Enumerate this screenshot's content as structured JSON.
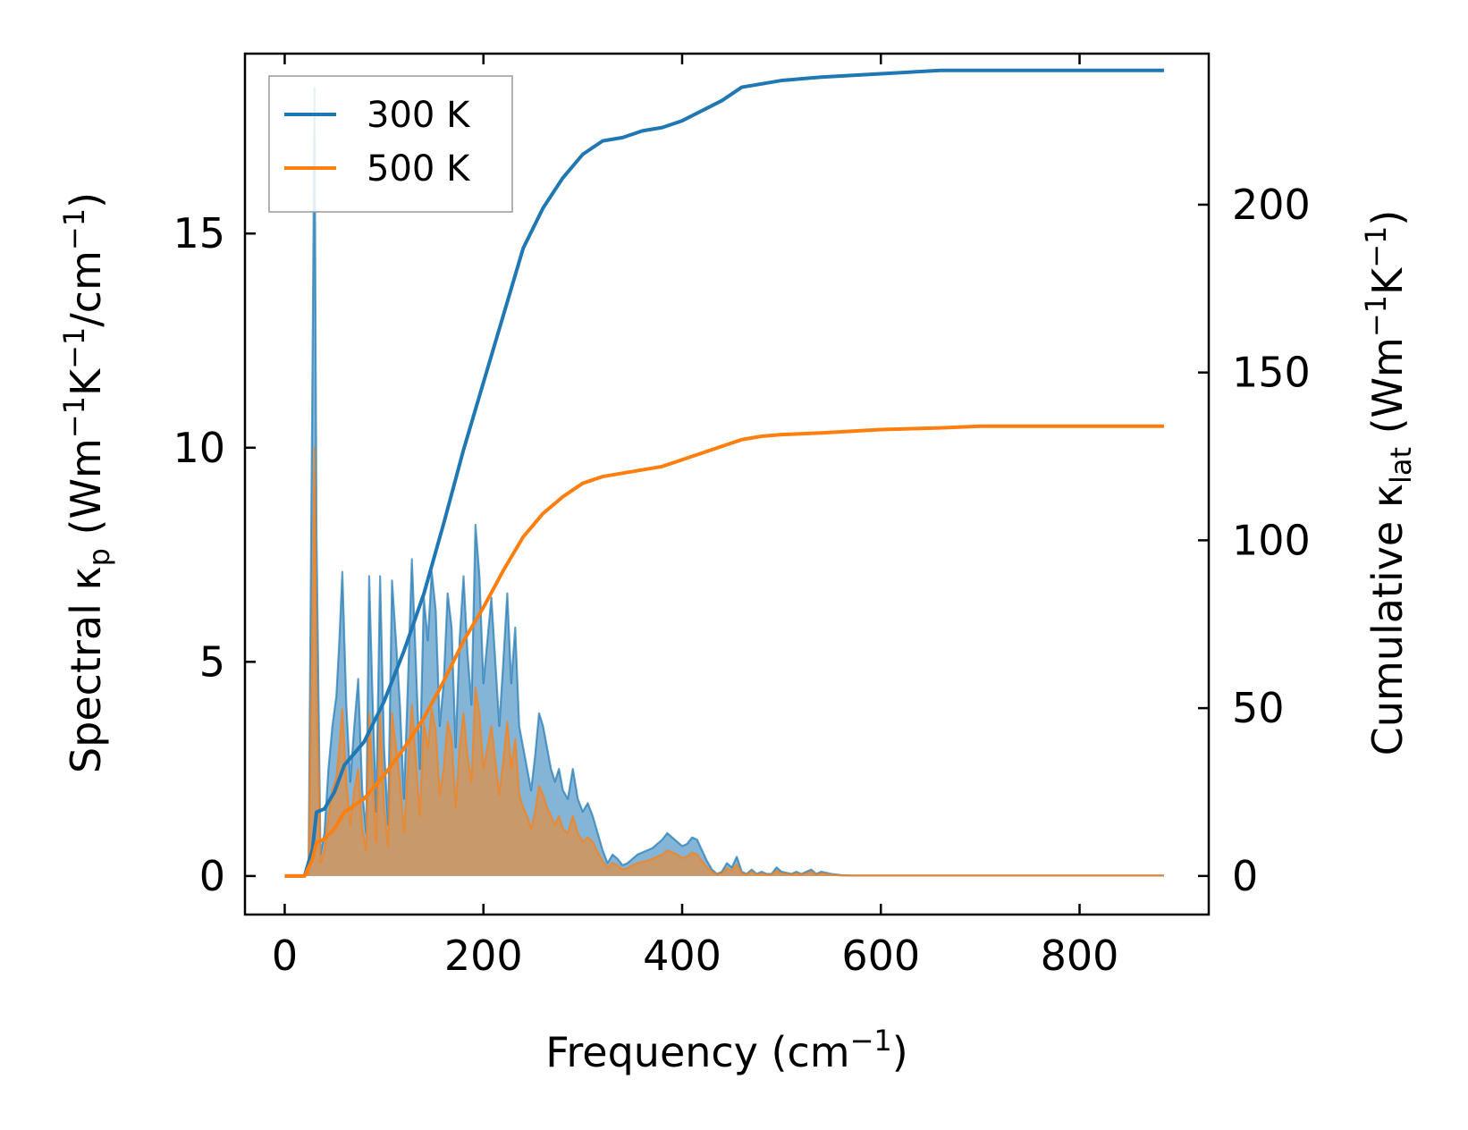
{
  "chart_data": {
    "type": "line",
    "xlabel": "Frequency (cm",
    "xlabel_sup": "−1",
    "xlabel_end": ")",
    "y_left_label": {
      "part1": "Spectral κ",
      "sub": "p",
      "part2": " (Wm",
      "sup1": "−1",
      "part3": "K",
      "sup2": "−1",
      "part4": "/cm",
      "sup3": "−1",
      "part5": ")"
    },
    "y_right_label": {
      "part1": "Cumulative κ",
      "sub": "lat",
      "part2": " (Wm",
      "sup1": "−1",
      "part3": "K",
      "sup2": "−1",
      "part4": ")"
    },
    "xlim": [
      -40,
      930
    ],
    "ylim_left": [
      -0.9,
      19.2
    ],
    "ylim_right": [
      -11.5,
      245
    ],
    "x_ticks": [
      0,
      200,
      400,
      600,
      800
    ],
    "x_tick_labels": [
      "0",
      "200",
      "400",
      "600",
      "800"
    ],
    "y_left_ticks": [
      0,
      5,
      10,
      15
    ],
    "y_left_tick_labels": [
      "0",
      "5",
      "10",
      "15"
    ],
    "y_right_ticks": [
      0,
      50,
      100,
      150,
      200
    ],
    "y_right_tick_labels": [
      "0",
      "50",
      "100",
      "150",
      "200"
    ],
    "legend": {
      "position": "top-left"
    },
    "series": [
      {
        "name": "300 K",
        "color": "#1f77b4",
        "spectral": {
          "x": [
            0,
            20,
            24,
            28,
            30,
            32,
            36,
            40,
            44,
            48,
            52,
            55,
            58,
            62,
            66,
            70,
            74,
            78,
            82,
            85,
            88,
            92,
            96,
            100,
            104,
            108,
            112,
            116,
            120,
            124,
            128,
            132,
            136,
            140,
            144,
            148,
            152,
            156,
            160,
            164,
            168,
            172,
            176,
            180,
            184,
            188,
            192,
            196,
            200,
            204,
            208,
            212,
            216,
            220,
            224,
            228,
            232,
            236,
            240,
            244,
            248,
            252,
            256,
            260,
            264,
            268,
            272,
            276,
            280,
            285,
            290,
            295,
            300,
            305,
            310,
            315,
            320,
            325,
            330,
            335,
            340,
            345,
            350,
            355,
            360,
            365,
            370,
            375,
            380,
            385,
            390,
            395,
            400,
            405,
            410,
            415,
            420,
            425,
            430,
            435,
            440,
            445,
            450,
            455,
            460,
            465,
            470,
            475,
            480,
            485,
            490,
            495,
            500,
            510,
            515,
            520,
            525,
            530,
            535,
            540,
            550,
            560,
            570,
            580,
            590,
            600,
            610,
            620,
            630,
            640,
            650,
            660,
            665,
            670,
            680,
            700,
            720,
            730,
            735,
            740,
            760,
            780,
            790,
            800,
            820,
            840,
            860,
            885
          ],
          "y": [
            0,
            0,
            0.1,
            12.0,
            18.4,
            8.0,
            0.5,
            1.0,
            2.5,
            3.5,
            4.2,
            5.5,
            7.1,
            4.0,
            2.2,
            3.5,
            4.6,
            2.0,
            1.0,
            7.0,
            4.5,
            1.5,
            7.0,
            3.0,
            1.2,
            6.9,
            5.5,
            4.0,
            1.8,
            4.5,
            7.4,
            5.0,
            2.5,
            6.5,
            5.5,
            7.1,
            6.2,
            3.5,
            4.5,
            6.6,
            5.8,
            3.0,
            5.5,
            7.0,
            5.2,
            4.0,
            8.2,
            7.0,
            4.5,
            5.5,
            6.5,
            5.0,
            3.5,
            5.0,
            6.6,
            4.5,
            5.8,
            3.5,
            3.0,
            2.5,
            2.0,
            2.8,
            3.8,
            3.5,
            3.0,
            2.5,
            2.2,
            2.5,
            2.0,
            1.8,
            2.5,
            1.8,
            1.5,
            1.7,
            1.4,
            1.0,
            0.6,
            0.3,
            0.5,
            0.4,
            0.25,
            0.3,
            0.4,
            0.5,
            0.55,
            0.6,
            0.65,
            0.75,
            0.85,
            1.0,
            0.9,
            0.8,
            0.7,
            0.75,
            0.9,
            0.85,
            0.6,
            0.35,
            0.15,
            0.05,
            0.1,
            0.3,
            0.2,
            0.45,
            0.1,
            0.05,
            0.15,
            0.05,
            0.1,
            0.05,
            0.05,
            0.2,
            0.1,
            0.05,
            0.1,
            0.05,
            0.1,
            0.15,
            0.05,
            0.1,
            0.05,
            0.02,
            0.01,
            0.01,
            0.01,
            0.01,
            0.01,
            0.01,
            0.01,
            0.01,
            0.01,
            0.01,
            0.01,
            0.01,
            0.01,
            0.01,
            0.01,
            0.01,
            0.01,
            0.01,
            0.01,
            0.01,
            0.01,
            0.01,
            0.01,
            0.01,
            0.01,
            0.01
          ]
        },
        "cumulative": {
          "x": [
            0,
            20,
            28,
            32,
            40,
            50,
            60,
            80,
            100,
            120,
            140,
            160,
            180,
            200,
            220,
            240,
            260,
            280,
            300,
            320,
            340,
            360,
            380,
            400,
            420,
            440,
            460,
            480,
            500,
            540,
            600,
            660,
            700,
            780,
            885
          ],
          "y": [
            0,
            0,
            8,
            19,
            20,
            25,
            33,
            40,
            52,
            67,
            84,
            105,
            127,
            147,
            167,
            187,
            199,
            208,
            215,
            219,
            220,
            222,
            223,
            225,
            228,
            231,
            235,
            236,
            237,
            238,
            239,
            240,
            240,
            240,
            240
          ]
        }
      },
      {
        "name": "500 K",
        "color": "#ff7f0e",
        "spectral": {
          "x": [
            0,
            20,
            24,
            28,
            30,
            32,
            36,
            40,
            44,
            48,
            52,
            55,
            58,
            62,
            66,
            70,
            74,
            78,
            82,
            85,
            88,
            92,
            96,
            100,
            104,
            108,
            112,
            116,
            120,
            124,
            128,
            132,
            136,
            140,
            144,
            148,
            152,
            156,
            160,
            164,
            168,
            172,
            176,
            180,
            184,
            188,
            192,
            196,
            200,
            204,
            208,
            212,
            216,
            220,
            224,
            228,
            232,
            236,
            240,
            244,
            248,
            252,
            256,
            260,
            264,
            268,
            272,
            276,
            280,
            285,
            290,
            295,
            300,
            305,
            310,
            315,
            320,
            325,
            330,
            335,
            340,
            345,
            350,
            355,
            360,
            365,
            370,
            375,
            380,
            385,
            390,
            395,
            400,
            405,
            410,
            415,
            420,
            425,
            430,
            435,
            440,
            445,
            450,
            455,
            460,
            465,
            470,
            475,
            480,
            485,
            490,
            495,
            500,
            510,
            515,
            520,
            525,
            530,
            535,
            540,
            550,
            560,
            570,
            580,
            590,
            600,
            610,
            620,
            630,
            640,
            650,
            660,
            665,
            670,
            680,
            700,
            720,
            730,
            735,
            740,
            760,
            780,
            790,
            800,
            820,
            840,
            860,
            885
          ],
          "y": [
            0,
            0,
            0.05,
            6.0,
            10.0,
            4.5,
            0.3,
            0.6,
            1.4,
            2.0,
            2.3,
            3.0,
            3.9,
            2.2,
            1.2,
            2.0,
            2.5,
            1.1,
            0.6,
            3.8,
            2.5,
            0.8,
            3.8,
            1.6,
            0.7,
            3.8,
            3.0,
            2.2,
            1.0,
            2.5,
            4.0,
            2.7,
            1.4,
            3.6,
            3.0,
            3.9,
            3.4,
            1.9,
            2.5,
            3.6,
            3.2,
            1.6,
            3.0,
            3.8,
            2.8,
            2.2,
            4.4,
            3.8,
            2.5,
            3.0,
            3.5,
            2.7,
            1.9,
            2.7,
            3.6,
            2.5,
            3.2,
            1.9,
            1.6,
            1.4,
            1.1,
            1.5,
            2.1,
            1.9,
            1.6,
            1.4,
            1.2,
            1.4,
            1.1,
            1.0,
            1.4,
            1.0,
            0.8,
            0.9,
            0.8,
            0.55,
            0.35,
            0.2,
            0.3,
            0.25,
            0.15,
            0.18,
            0.25,
            0.3,
            0.33,
            0.36,
            0.4,
            0.45,
            0.5,
            0.6,
            0.55,
            0.5,
            0.42,
            0.45,
            0.55,
            0.5,
            0.35,
            0.2,
            0.1,
            0.03,
            0.06,
            0.18,
            0.12,
            0.27,
            0.06,
            0.03,
            0.1,
            0.03,
            0.06,
            0.03,
            0.03,
            0.12,
            0.06,
            0.03,
            0.06,
            0.03,
            0.06,
            0.1,
            0.03,
            0.06,
            0.03,
            0.01,
            0.01,
            0.01,
            0.01,
            0.01,
            0.01,
            0.01,
            0.01,
            0.01,
            0.01,
            0.01,
            0.01,
            0.01,
            0.01,
            0.01,
            0.01,
            0.01,
            0.01,
            0.01,
            0.01,
            0.01,
            0.01,
            0.01,
            0.01,
            0.01,
            0.01,
            0.01
          ]
        },
        "cumulative": {
          "x": [
            0,
            20,
            28,
            32,
            40,
            50,
            60,
            80,
            100,
            120,
            140,
            160,
            180,
            200,
            220,
            240,
            260,
            280,
            300,
            320,
            340,
            360,
            380,
            400,
            420,
            440,
            460,
            480,
            500,
            540,
            600,
            660,
            700,
            780,
            885
          ],
          "y": [
            0,
            0,
            5,
            10,
            11,
            14,
            19,
            23,
            30,
            38,
            47,
            58,
            70,
            80,
            91,
            101,
            108,
            113,
            117,
            119,
            120,
            121,
            122,
            124,
            126,
            128,
            130,
            131,
            131.5,
            132,
            133,
            133.5,
            134,
            134,
            134
          ]
        }
      }
    ]
  }
}
